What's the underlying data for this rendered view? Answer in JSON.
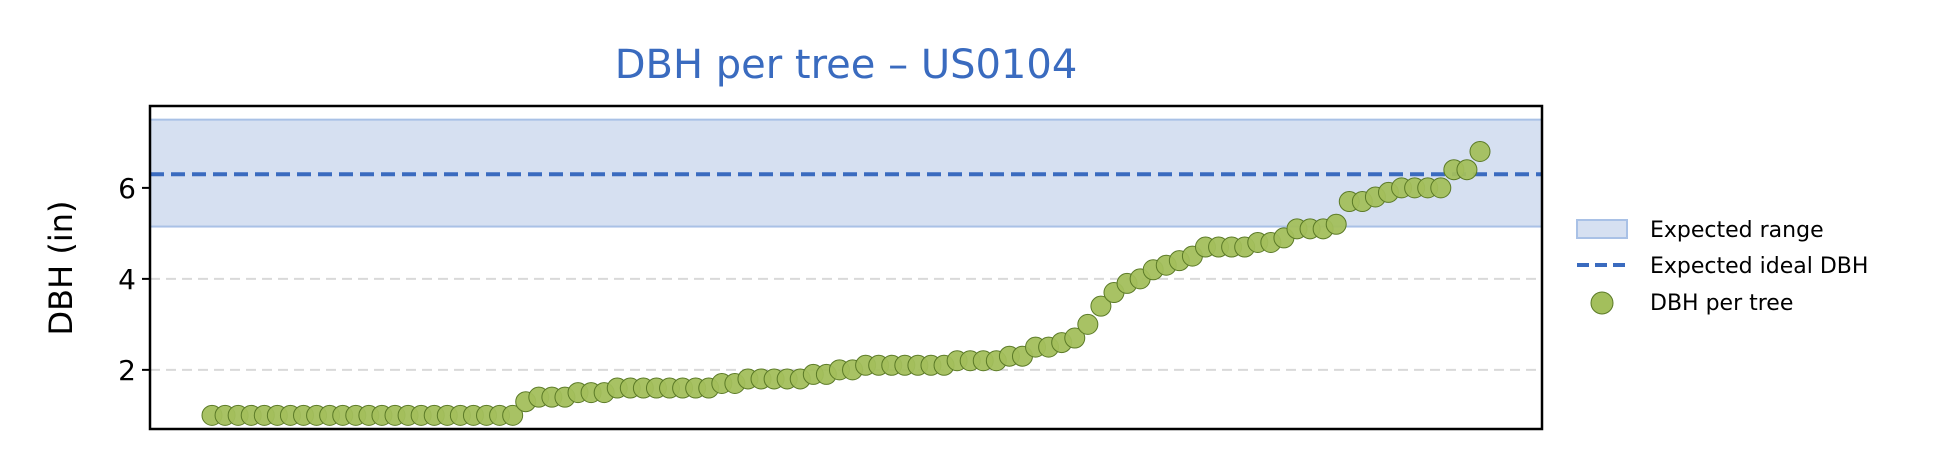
{
  "chart_data": {
    "type": "scatter",
    "title": "DBH per tree – US0104",
    "xlabel": "",
    "ylabel": "DBH (in)",
    "ylim": [
      0.7,
      7.8
    ],
    "yticks": [
      2,
      4,
      6
    ],
    "grid": "y, dashed",
    "legend_position": "right",
    "expected_range": {
      "label": "Expected range",
      "min": 5.15,
      "max": 7.5
    },
    "expected_ideal": {
      "label": "Expected ideal DBH",
      "value": 6.3
    },
    "series": [
      {
        "name": "DBH per tree",
        "values": [
          1.0,
          1.0,
          1.0,
          1.0,
          1.0,
          1.0,
          1.0,
          1.0,
          1.0,
          1.0,
          1.0,
          1.0,
          1.0,
          1.0,
          1.0,
          1.0,
          1.0,
          1.0,
          1.0,
          1.0,
          1.0,
          1.0,
          1.0,
          1.0,
          1.3,
          1.4,
          1.4,
          1.4,
          1.5,
          1.5,
          1.5,
          1.6,
          1.6,
          1.6,
          1.6,
          1.6,
          1.6,
          1.6,
          1.6,
          1.7,
          1.7,
          1.8,
          1.8,
          1.8,
          1.8,
          1.8,
          1.9,
          1.9,
          2.0,
          2.0,
          2.1,
          2.1,
          2.1,
          2.1,
          2.1,
          2.1,
          2.1,
          2.2,
          2.2,
          2.2,
          2.2,
          2.3,
          2.3,
          2.5,
          2.5,
          2.6,
          2.7,
          3.0,
          3.4,
          3.7,
          3.9,
          4.0,
          4.2,
          4.3,
          4.4,
          4.5,
          4.7,
          4.7,
          4.7,
          4.7,
          4.8,
          4.8,
          4.9,
          5.1,
          5.1,
          5.1,
          5.2,
          5.7,
          5.7,
          5.8,
          5.9,
          6.0,
          6.0,
          6.0,
          6.0,
          6.4,
          6.4,
          6.8
        ]
      }
    ],
    "colors": {
      "range_fill": "#d6e0f1",
      "range_edge": "#a9c1e6",
      "ideal_line": "#3a6bbf",
      "point_fill": "#a3bf5c",
      "point_edge": "#5b7a27",
      "grid": "#d9d9d9",
      "title": "#3a6bbf"
    }
  }
}
